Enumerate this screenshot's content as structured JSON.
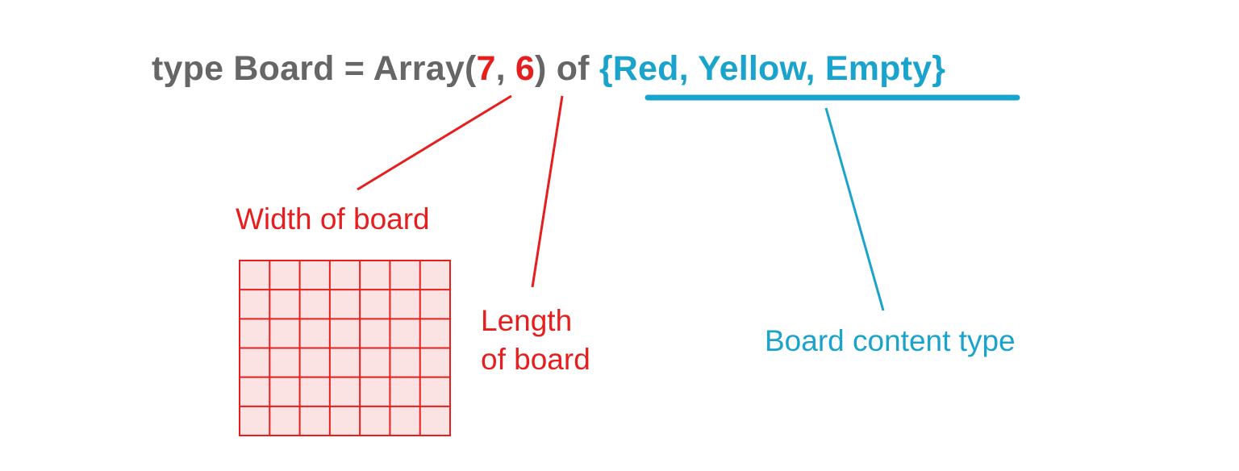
{
  "code": {
    "prefix": "type Board = Array(",
    "width_value": "7",
    "separator": ", ",
    "length_value": "6",
    "middle": ") of ",
    "content_type": "{Red, Yellow, Empty}"
  },
  "labels": {
    "width": "Width of board",
    "length_line1": "Length",
    "length_line2": "of board",
    "content": "Board content type"
  },
  "grid": {
    "columns": 7,
    "rows": 6
  },
  "colors": {
    "code_text": "#666666",
    "red": "#e61e1e",
    "blue": "#1aa3cc",
    "grid_fill": "#fbe3e4"
  }
}
